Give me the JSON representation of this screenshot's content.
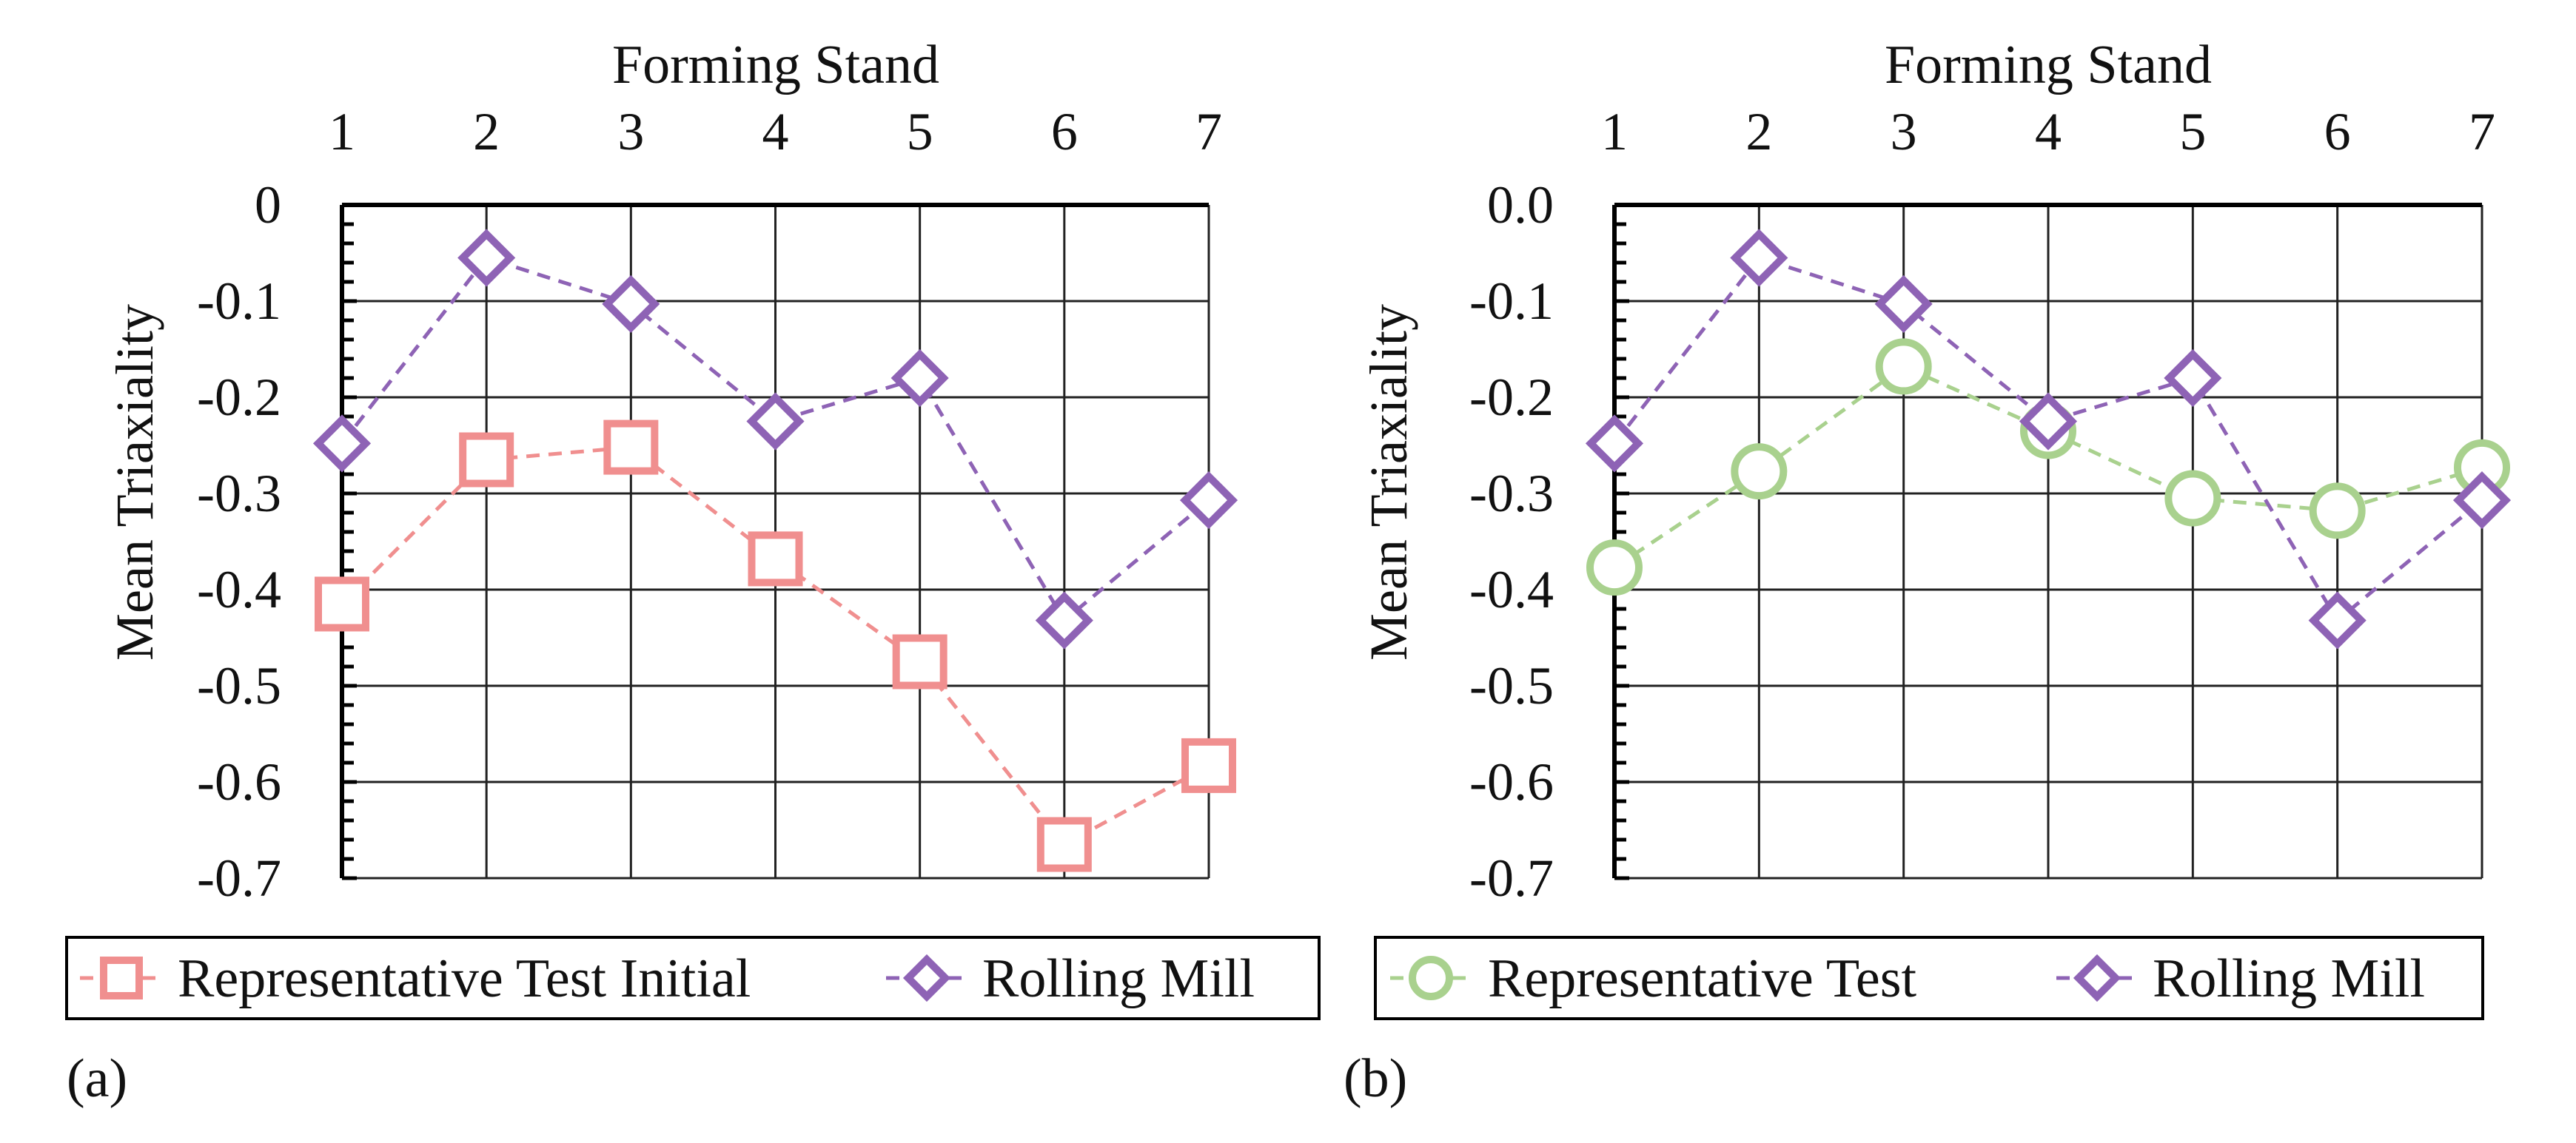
{
  "chart_data": [
    {
      "type": "line",
      "panel_label": "(a)",
      "title": "Forming Stand",
      "xlabel": "Forming Stand",
      "ylabel": "Mean Triaxiality",
      "x": [
        1,
        2,
        3,
        4,
        5,
        6,
        7
      ],
      "x_tick_labels": [
        "1",
        "2",
        "3",
        "4",
        "5",
        "6",
        "7"
      ],
      "ylim": [
        -0.7,
        0
      ],
      "y_tick_labels": [
        "0",
        "-0.1",
        "-0.2",
        "-0.3",
        "-0.4",
        "-0.5",
        "-0.6",
        "-0.7"
      ],
      "grid": true,
      "x_axis_position": "top",
      "legend_position": "bottom",
      "series": [
        {
          "name": "Representative Test Initial",
          "marker": "square",
          "color": "#f08f8f",
          "values": [
            -0.415,
            -0.265,
            -0.252,
            -0.368,
            -0.475,
            -0.665,
            -0.583
          ]
        },
        {
          "name": "Rolling Mill",
          "marker": "diamond",
          "color": "#8e63b5",
          "values": [
            -0.248,
            -0.055,
            -0.103,
            -0.225,
            -0.18,
            -0.432,
            -0.307
          ]
        }
      ]
    },
    {
      "type": "line",
      "panel_label": "(b)",
      "title": "Forming Stand",
      "xlabel": "Forming Stand",
      "ylabel": "Mean Triaxiality",
      "x": [
        1,
        2,
        3,
        4,
        5,
        6,
        7
      ],
      "x_tick_labels": [
        "1",
        "2",
        "3",
        "4",
        "5",
        "6",
        "7"
      ],
      "ylim": [
        -0.7,
        0
      ],
      "y_tick_labels": [
        "0.0",
        "-0.1",
        "-0.2",
        "-0.3",
        "-0.4",
        "-0.5",
        "-0.6",
        "-0.7"
      ],
      "grid": true,
      "x_axis_position": "top",
      "legend_position": "bottom",
      "series": [
        {
          "name": "Representative Test",
          "marker": "circle",
          "color": "#a9d18e",
          "values": [
            -0.377,
            -0.277,
            -0.168,
            -0.235,
            -0.305,
            -0.318,
            -0.273
          ]
        },
        {
          "name": "Rolling Mill",
          "marker": "diamond",
          "color": "#8e63b5",
          "values": [
            -0.248,
            -0.055,
            -0.103,
            -0.225,
            -0.18,
            -0.432,
            -0.307
          ]
        }
      ]
    }
  ]
}
